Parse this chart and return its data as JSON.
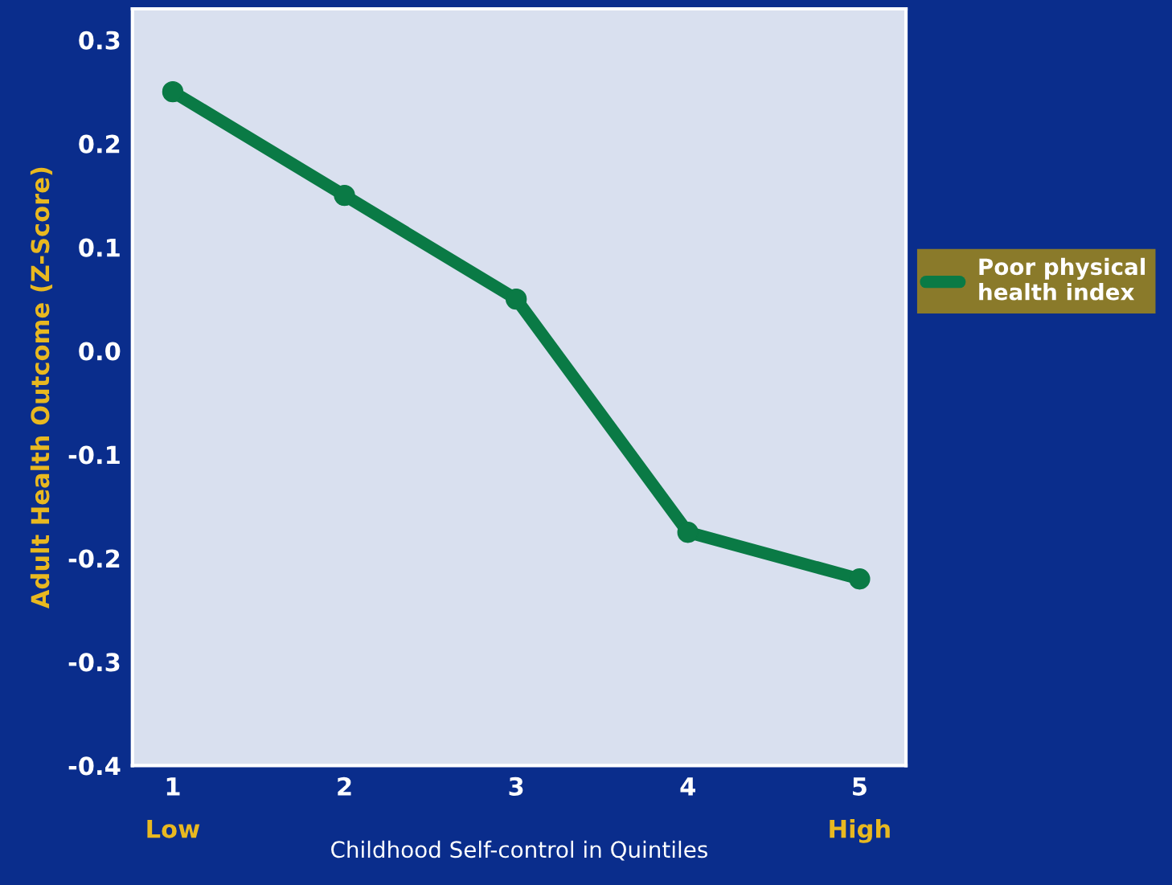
{
  "chart_data": {
    "type": "line",
    "xlabel": "Childhood Self-control in Quintiles",
    "ylabel": "Adult Health Outcome (Z-Score)",
    "categories": [
      "1",
      "2",
      "3",
      "4",
      "5"
    ],
    "series": [
      {
        "name": "Poor physical\nhealth index",
        "color": "#0a7a45",
        "values": [
          0.25,
          0.15,
          0.05,
          -0.175,
          -0.22
        ]
      }
    ],
    "ylim": [
      -0.4,
      0.33
    ],
    "yticks": [
      {
        "value": -0.4,
        "label": "-0.4"
      },
      {
        "value": -0.3,
        "label": "-0.3"
      },
      {
        "value": -0.2,
        "label": "-0.2"
      },
      {
        "value": -0.1,
        "label": "-0.1"
      },
      {
        "value": 0,
        "label": "0.0"
      },
      {
        "value": 0.1,
        "label": "0.1"
      },
      {
        "value": 0.2,
        "label": "0.2"
      },
      {
        "value": 0.3,
        "label": "0.3"
      }
    ],
    "annotations": [
      "Low",
      "High"
    ],
    "marker": "circle",
    "grid": false,
    "legend": "right"
  }
}
